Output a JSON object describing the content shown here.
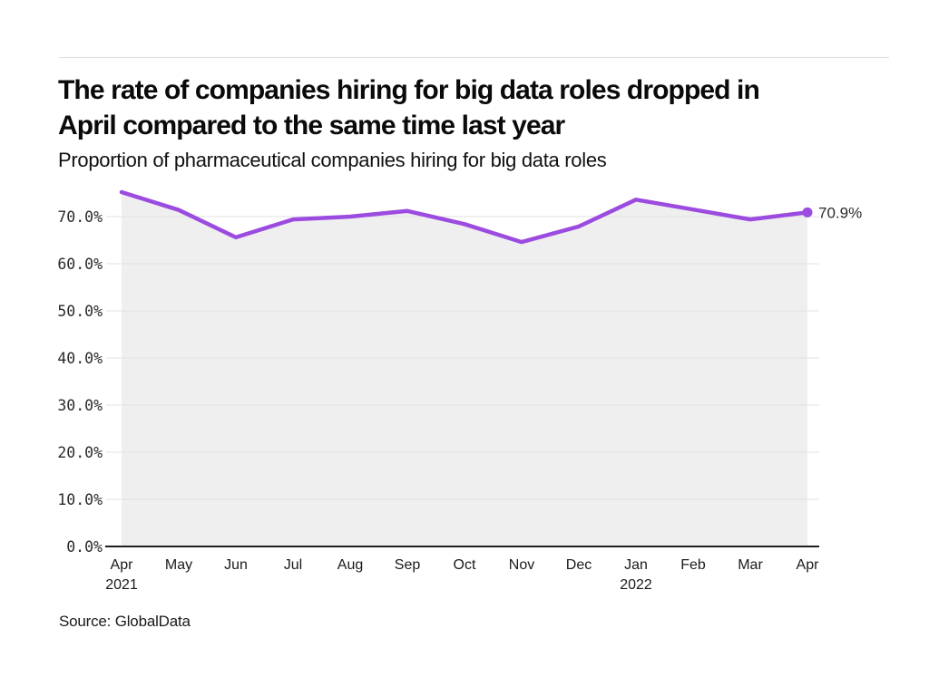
{
  "page": {
    "title_line1": "The rate of companies hiring for big data roles dropped in",
    "title_line2": "April compared to the same time last year",
    "subtitle": "Proportion of pharmaceutical companies hiring for big data roles",
    "source": "Source: GlobalData"
  },
  "colors": {
    "line": "#9c4be0",
    "area": "#efefef",
    "grid": "#e2e2e2",
    "axis": "#1f1f1f",
    "tick_text": "#2b2b2b",
    "annotation_text": "#2b2b2b"
  },
  "chart_data": {
    "type": "line",
    "title": "Proportion of pharmaceutical companies hiring for big data roles",
    "x": [
      "Apr 2021",
      "May",
      "Jun",
      "Jul",
      "Aug",
      "Sep",
      "Oct",
      "Nov",
      "Dec",
      "Jan 2022",
      "Feb",
      "Mar",
      "Apr"
    ],
    "x_tick_labels": [
      "Apr",
      "May",
      "Jun",
      "Jul",
      "Aug",
      "Sep",
      "Oct",
      "Nov",
      "Dec",
      "Jan",
      "Feb",
      "Mar",
      "Apr"
    ],
    "x_year_labels": [
      {
        "index": 0,
        "label": "2021"
      },
      {
        "index": 9,
        "label": "2022"
      }
    ],
    "series": [
      {
        "name": "Proportion of pharmaceutical companies hiring for big data roles",
        "values": [
          75.2,
          71.4,
          65.6,
          69.4,
          70.0,
          71.2,
          68.4,
          64.6,
          67.9,
          73.6,
          71.5,
          69.4,
          70.9
        ]
      }
    ],
    "end_point_label": "70.9%",
    "y_ticks": [
      0,
      10,
      20,
      30,
      40,
      50,
      60,
      70
    ],
    "y_tick_labels": [
      "0.0%",
      "10.0%",
      "20.0%",
      "30.0%",
      "40.0%",
      "50.0%",
      "60.0%",
      "70.0%"
    ],
    "ylim": [
      0,
      80
    ],
    "grid": true,
    "legend_position": "none",
    "area_fill": true
  }
}
